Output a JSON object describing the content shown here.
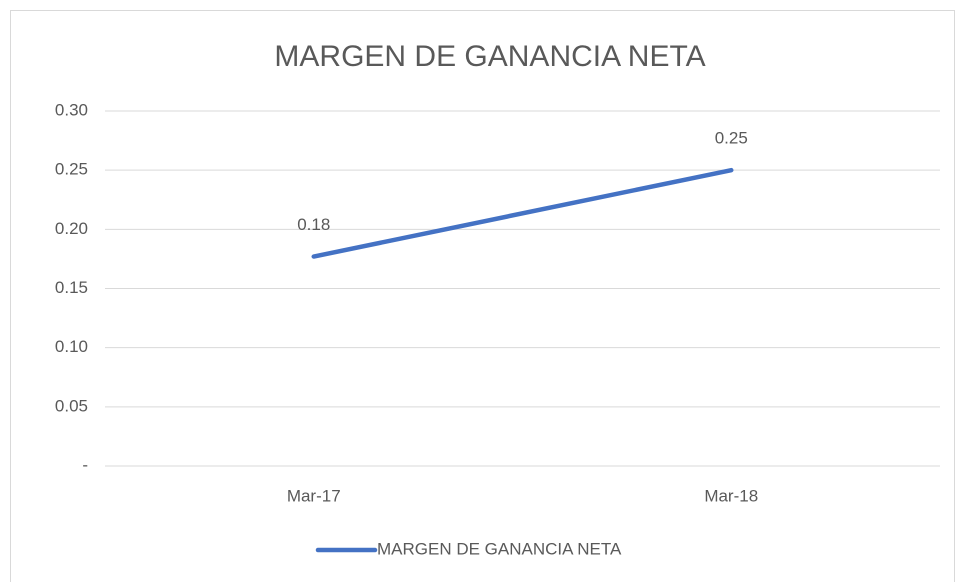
{
  "chart_data": {
    "type": "line",
    "title": "MARGEN DE GANANCIA NETA",
    "categories": [
      "Mar-17",
      "Mar-18"
    ],
    "series": [
      {
        "name": "MARGEN DE GANANCIA NETA",
        "color": "#4472c4",
        "values": [
          0.177,
          0.25
        ],
        "value_labels": [
          "0.18",
          "0.25"
        ]
      }
    ],
    "ylim": [
      0,
      0.3
    ],
    "yticks": [
      {
        "value": 0,
        "label": "-"
      },
      {
        "value": 0.05,
        "label": "0.05"
      },
      {
        "value": 0.1,
        "label": "0.10"
      },
      {
        "value": 0.15,
        "label": "0.15"
      },
      {
        "value": 0.2,
        "label": "0.20"
      },
      {
        "value": 0.25,
        "label": "0.25"
      },
      {
        "value": 0.3,
        "label": "0.30"
      }
    ],
    "grid": true,
    "legend": "bottom"
  }
}
